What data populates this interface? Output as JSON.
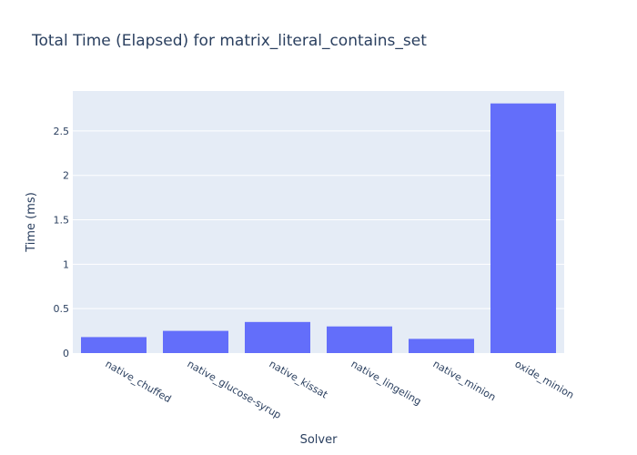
{
  "chart_data": {
    "type": "bar",
    "title": "Total Time (Elapsed) for matrix_literal_contains_set",
    "xlabel": "Solver",
    "ylabel": "Time (ms)",
    "categories": [
      "native_chuffed",
      "native_glucose-syrup",
      "native_kissat",
      "native_lingeling",
      "native_minion",
      "oxide_minion"
    ],
    "values": [
      0.18,
      0.25,
      0.35,
      0.3,
      0.16,
      2.81
    ],
    "ylim": [
      0,
      2.95
    ],
    "yticks": [
      0,
      0.5,
      1,
      1.5,
      2,
      2.5
    ],
    "ytick_labels": [
      "0",
      "0.5",
      "1",
      "1.5",
      "2",
      "2.5"
    ],
    "grid": true,
    "colors": {
      "bar": "#636efa",
      "plot_bg": "#e5ecf6",
      "grid": "#ffffff",
      "text": "#2a3f5f"
    }
  }
}
